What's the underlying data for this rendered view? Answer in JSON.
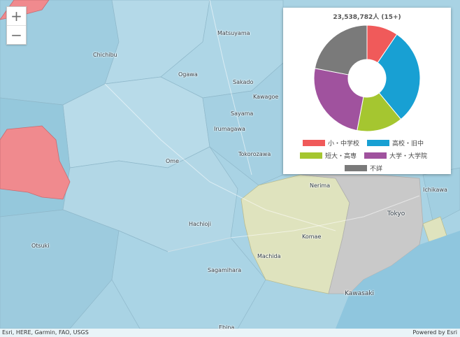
{
  "map": {
    "zoom_in_label": "+",
    "zoom_out_label": "−",
    "places": [
      {
        "name": "Matsuyama"
      },
      {
        "name": "Chichibu"
      },
      {
        "name": "Ogawa"
      },
      {
        "name": "Sakado"
      },
      {
        "name": "Kawagoe"
      },
      {
        "name": "Sayama"
      },
      {
        "name": "Irumagawa"
      },
      {
        "name": "Tokorozawa"
      },
      {
        "name": "Ome"
      },
      {
        "name": "Nerima"
      },
      {
        "name": "Ichikawa"
      },
      {
        "name": "Tokyo"
      },
      {
        "name": "Hachioji"
      },
      {
        "name": "Komae"
      },
      {
        "name": "Otsuki"
      },
      {
        "name": "Machida"
      },
      {
        "name": "Sagamihara"
      },
      {
        "name": "Kawasaki"
      },
      {
        "name": "Ebina"
      }
    ],
    "colors": {
      "water": "#a9d3e4",
      "highlight": "#f08a8e",
      "urban": "#dfe3be",
      "gray": "#c9c9c9"
    }
  },
  "panel": {
    "title": "23,538,782人 (15+)",
    "legend": [
      {
        "label": "小・中学校",
        "color": "#f05a5a"
      },
      {
        "label": "高校・旧中",
        "color": "#18a0d3"
      },
      {
        "label": "短大・高専",
        "color": "#a5c630"
      },
      {
        "label": "大学・大学院",
        "color": "#a0529e"
      },
      {
        "label": "不詳",
        "color": "#7a7a7a"
      }
    ]
  },
  "chart_data": {
    "type": "pie",
    "title": "23,538,782人 (15+)",
    "categories": [
      "小・中学校",
      "高校・旧中",
      "短大・高専",
      "大学・大学院",
      "不詳"
    ],
    "values": [
      9.5,
      29.5,
      14,
      25,
      22
    ],
    "colors": [
      "#f05a5a",
      "#18a0d3",
      "#a5c630",
      "#a0529e",
      "#7a7a7a"
    ],
    "donut": true,
    "legend_position": "bottom"
  },
  "attribution": {
    "left": "Esri, HERE, Garmin, FAO, USGS",
    "right": "Powered by Esri"
  }
}
